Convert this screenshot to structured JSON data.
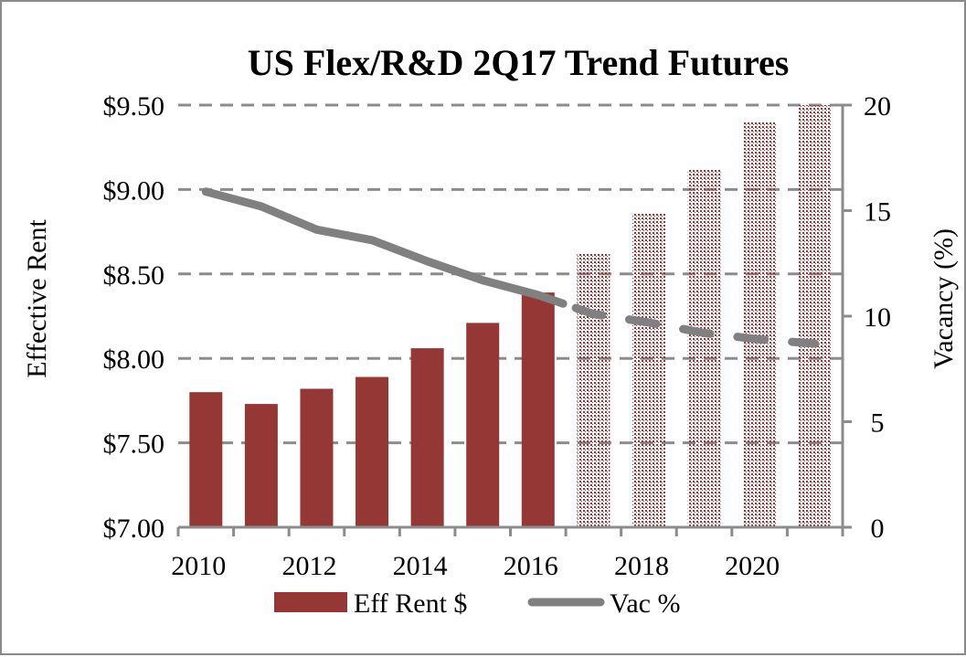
{
  "chart_data": {
    "type": "bar+line",
    "title": "US Flex/R&D 2Q17 Trend Futures",
    "ylabel": "Effective Rent",
    "y2label": "Vacancy (%)",
    "ylim": [
      7.0,
      9.5
    ],
    "y2lim": [
      0,
      20
    ],
    "yticks": [
      "$7.00",
      "$7.50",
      "$8.00",
      "$8.50",
      "$9.00",
      "$9.50"
    ],
    "y2ticks": [
      "0",
      "5",
      "10",
      "15",
      "20"
    ],
    "xticks": [
      "2010",
      "2012",
      "2014",
      "2016",
      "2018",
      "2020"
    ],
    "categories": [
      2010,
      2011,
      2012,
      2013,
      2014,
      2015,
      2016,
      2017,
      2018,
      2019,
      2020,
      2021
    ],
    "grid": true,
    "legend_position": "bottom",
    "series": [
      {
        "name": "Eff Rent $",
        "type": "bar",
        "axis": "left",
        "color": "#953735",
        "values": [
          7.8,
          7.73,
          7.82,
          7.89,
          8.06,
          8.21,
          8.39,
          8.62,
          8.86,
          9.12,
          9.4,
          9.5
        ],
        "forecast_from": 2017
      },
      {
        "name": "Vac %",
        "type": "line",
        "axis": "right",
        "color": "#808080",
        "values": [
          15.9,
          15.2,
          14.1,
          13.6,
          12.6,
          11.7,
          11.0,
          10.1,
          9.7,
          9.2,
          8.9,
          8.7
        ],
        "forecast_from": 2017
      }
    ]
  }
}
